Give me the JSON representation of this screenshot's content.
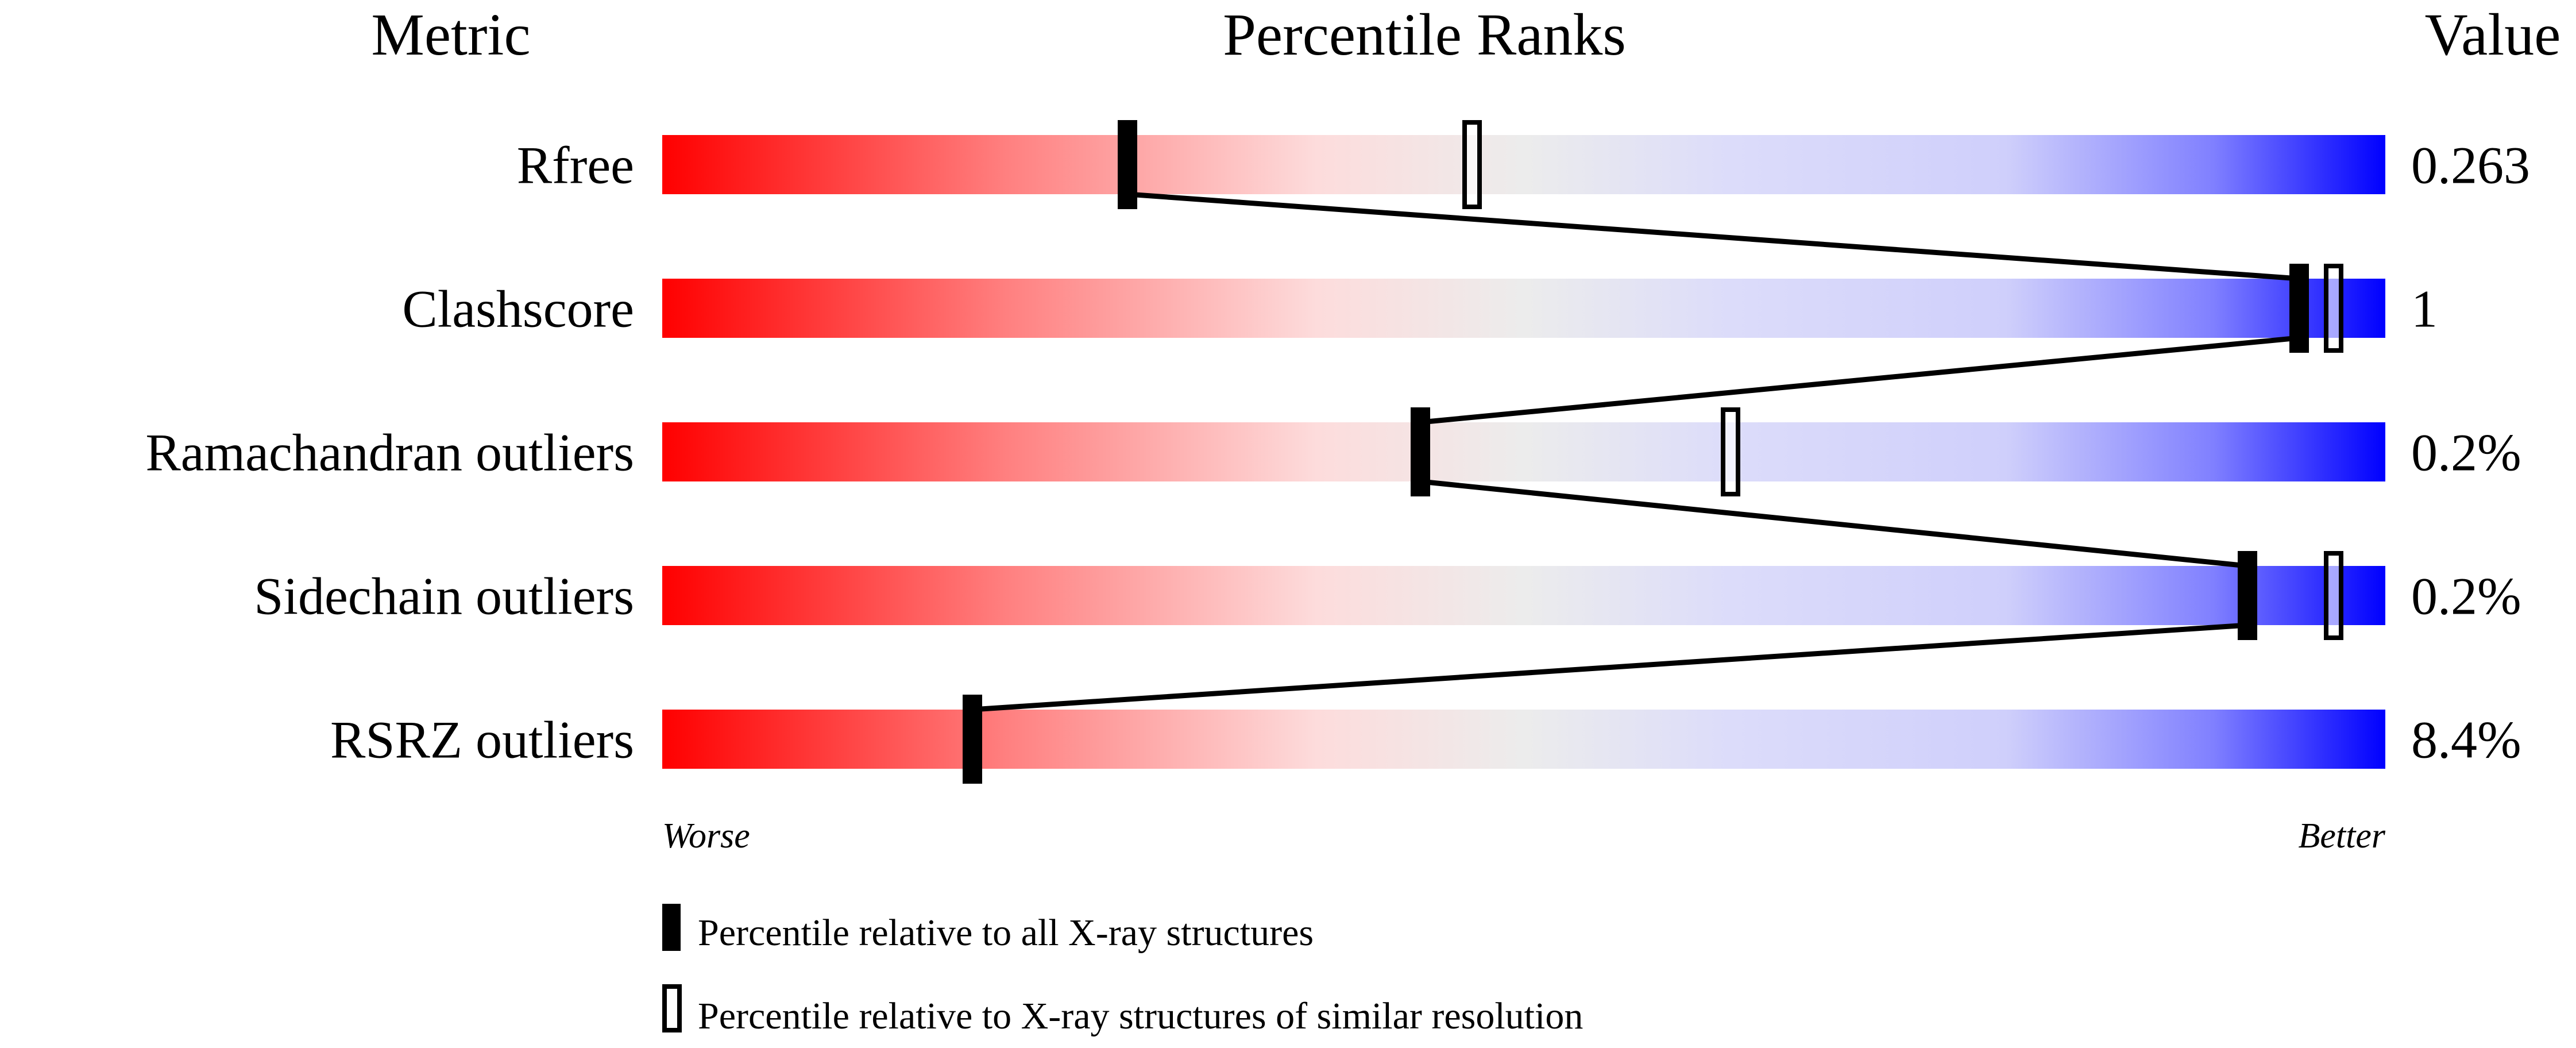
{
  "chart_data": {
    "type": "percentile-bars",
    "headers": {
      "metric": "Metric",
      "ranks": "Percentile Ranks",
      "value": "Value"
    },
    "xlim": [
      0,
      100
    ],
    "axis": {
      "left": "Worse",
      "right": "Better"
    },
    "colors": {
      "worse": "#ff0000",
      "mid": "#ececec",
      "better": "#0000ff",
      "marker": "#000000"
    },
    "rows": [
      {
        "metric": "Rfree",
        "value": "0.263",
        "percentile_all": 27,
        "percentile_similar": 47
      },
      {
        "metric": "Clashscore",
        "value": "1",
        "percentile_all": 95,
        "percentile_similar": 97
      },
      {
        "metric": "Ramachandran outliers",
        "value": "0.2%",
        "percentile_all": 44,
        "percentile_similar": 62
      },
      {
        "metric": "Sidechain outliers",
        "value": "0.2%",
        "percentile_all": 92,
        "percentile_similar": 97
      },
      {
        "metric": "RSRZ outliers",
        "value": "8.4%",
        "percentile_all": 18,
        "percentile_similar": null
      }
    ],
    "legend": [
      {
        "marker": "filled",
        "label": "Percentile relative to all X-ray structures"
      },
      {
        "marker": "open",
        "label": "Percentile relative to X-ray structures of similar resolution"
      }
    ]
  }
}
